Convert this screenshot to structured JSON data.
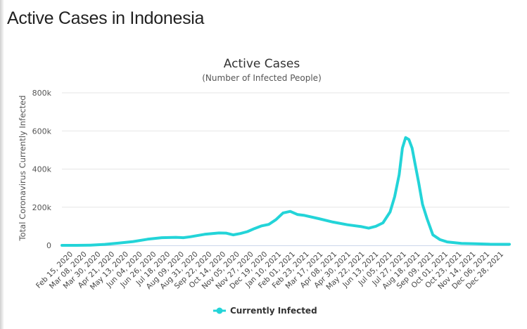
{
  "page": {
    "title": "Active Cases in Indonesia"
  },
  "colors": {
    "series": "#23d4d8",
    "grid": "#e6e6e6",
    "axis": "#ccd6eb"
  },
  "chart_data": {
    "type": "line",
    "title": "Active Cases",
    "subtitle": "(Number of Infected People)",
    "ylabel": "Total Coronavirus Currently Infected",
    "xlabel": "",
    "ylim": [
      0,
      800000
    ],
    "y_ticks": [
      0,
      200000,
      400000,
      600000,
      800000
    ],
    "y_tick_labels": [
      "0",
      "200k",
      "400k",
      "600k",
      "800k"
    ],
    "grid": true,
    "legend": "bottom-center",
    "x_tick_labels": [
      "Feb 15, 2020",
      "Mar 08, 2020",
      "Mar 30, 2020",
      "Apr 21, 2020",
      "May 13, 2020",
      "Jun 04, 2020",
      "Jun 26, 2020",
      "Jul 18, 2020",
      "Aug 09, 2020",
      "Aug 31, 2020",
      "Sep 22, 2020",
      "Oct 14, 2020",
      "Nov 05, 2020",
      "Nov 27, 2020",
      "Dec 19, 2020",
      "Jan 10, 2021",
      "Feb 01, 2021",
      "Feb 23, 2021",
      "Mar 17, 2021",
      "Apr 08, 2021",
      "Apr 30, 2021",
      "May 22, 2021",
      "Jun 13, 2021",
      "Jul 05, 2021",
      "Jul 27, 2021",
      "Aug 18, 2021",
      "Sep 09, 2021",
      "Oct 01, 2021",
      "Oct 23, 2021",
      "Nov 14, 2021",
      "Dec 06, 2021",
      "Dec 28, 2021"
    ],
    "series": [
      {
        "name": "Currently Infected",
        "x": [
          "2020-02-15",
          "2020-03-08",
          "2020-03-30",
          "2020-04-21",
          "2020-05-13",
          "2020-06-04",
          "2020-06-26",
          "2020-07-18",
          "2020-08-09",
          "2020-08-20",
          "2020-08-31",
          "2020-09-22",
          "2020-10-14",
          "2020-10-25",
          "2020-11-05",
          "2020-11-16",
          "2020-11-27",
          "2020-12-08",
          "2020-12-19",
          "2020-12-30",
          "2021-01-10",
          "2021-01-21",
          "2021-02-01",
          "2021-02-12",
          "2021-02-23",
          "2021-03-17",
          "2021-04-08",
          "2021-04-30",
          "2021-05-22",
          "2021-06-02",
          "2021-06-13",
          "2021-06-24",
          "2021-07-05",
          "2021-07-12",
          "2021-07-19",
          "2021-07-24",
          "2021-07-29",
          "2021-08-03",
          "2021-08-08",
          "2021-08-13",
          "2021-08-18",
          "2021-08-24",
          "2021-08-31",
          "2021-09-09",
          "2021-09-20",
          "2021-10-01",
          "2021-10-23",
          "2021-11-14",
          "2021-12-06",
          "2021-12-28",
          "2022-01-05"
        ],
        "values": [
          0,
          0,
          1000,
          5000,
          12000,
          20000,
          32000,
          40000,
          42000,
          40000,
          45000,
          58000,
          65000,
          64000,
          55000,
          62000,
          72000,
          88000,
          102000,
          110000,
          135000,
          170000,
          178000,
          162000,
          157000,
          140000,
          122000,
          108000,
          98000,
          90000,
          100000,
          118000,
          175000,
          255000,
          370000,
          510000,
          565000,
          555000,
          510000,
          420000,
          330000,
          215000,
          140000,
          55000,
          30000,
          18000,
          10000,
          8000,
          6000,
          5500,
          5500
        ]
      }
    ]
  }
}
